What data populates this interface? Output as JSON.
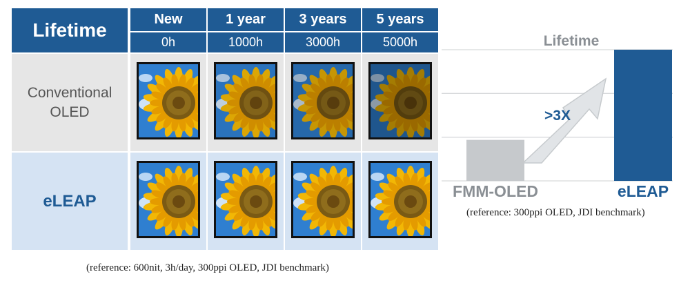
{
  "table": {
    "title": "Lifetime",
    "columns": [
      {
        "label": "New",
        "hours": "0h"
      },
      {
        "label": "1 year",
        "hours": "1000h"
      },
      {
        "label": "3 years",
        "hours": "3000h"
      },
      {
        "label": "5 years",
        "hours": "5000h"
      }
    ],
    "rows": [
      {
        "label_line1": "Conventional",
        "label_line2": "OLED",
        "brightness": [
          1.0,
          0.9,
          0.8,
          0.65
        ]
      },
      {
        "label": "eLEAP",
        "brightness": [
          1.0,
          1.0,
          1.0,
          1.0
        ]
      }
    ],
    "note": "(reference: 600nit, 3h/day, 300ppi OLED, JDI benchmark)"
  },
  "chart_data": {
    "type": "bar",
    "title": "Lifetime",
    "categories": [
      "FMM-OLED",
      "eLEAP"
    ],
    "values": [
      1,
      3.2
    ],
    "ylim": [
      0,
      3.2
    ],
    "grid": true,
    "annotation": ">3X",
    "colors": {
      "FMM-OLED": "#c6c9cc",
      "eLEAP": "#1f5b94",
      "label_fmm": "#8a8f94",
      "label_eleap": "#1f5b94"
    },
    "note": "(reference: 300ppi OLED, JDI benchmark)"
  },
  "icons": {
    "sample_image": "sunflower-image"
  }
}
